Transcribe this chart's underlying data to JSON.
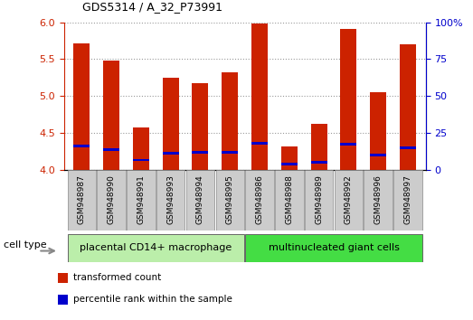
{
  "title": "GDS5314 / A_32_P73991",
  "samples": [
    "GSM948987",
    "GSM948990",
    "GSM948991",
    "GSM948993",
    "GSM948994",
    "GSM948995",
    "GSM948986",
    "GSM948988",
    "GSM948989",
    "GSM948992",
    "GSM948996",
    "GSM948997"
  ],
  "transformed_count": [
    5.72,
    5.48,
    4.57,
    5.25,
    5.18,
    5.32,
    5.98,
    4.32,
    4.62,
    5.91,
    5.05,
    5.7
  ],
  "percentile_rank_value": [
    4.32,
    4.27,
    4.13,
    4.22,
    4.23,
    4.24,
    4.36,
    4.07,
    4.1,
    4.35,
    4.2,
    4.3
  ],
  "ylim_left": [
    4.0,
    6.0
  ],
  "yticks_left": [
    4.0,
    4.5,
    5.0,
    5.5,
    6.0
  ],
  "ytick_labels_right": [
    "0",
    "25",
    "50",
    "75",
    "100%"
  ],
  "bar_color": "#cc2200",
  "percentile_color": "#0000cc",
  "bar_width": 0.55,
  "groups": [
    {
      "label": "placental CD14+ macrophage",
      "start": 0,
      "end": 5,
      "color": "#bbeeaa"
    },
    {
      "label": "multinucleated giant cells",
      "start": 6,
      "end": 11,
      "color": "#44dd44"
    }
  ],
  "cell_type_label": "cell type",
  "legend_items": [
    {
      "label": "transformed count",
      "color": "#cc2200"
    },
    {
      "label": "percentile rank within the sample",
      "color": "#0000cc"
    }
  ],
  "grid_color": "#999999",
  "left_tick_color": "#cc2200",
  "right_tick_color": "#0000cc",
  "xtick_bg": "#cccccc",
  "spine_color": "#000000"
}
